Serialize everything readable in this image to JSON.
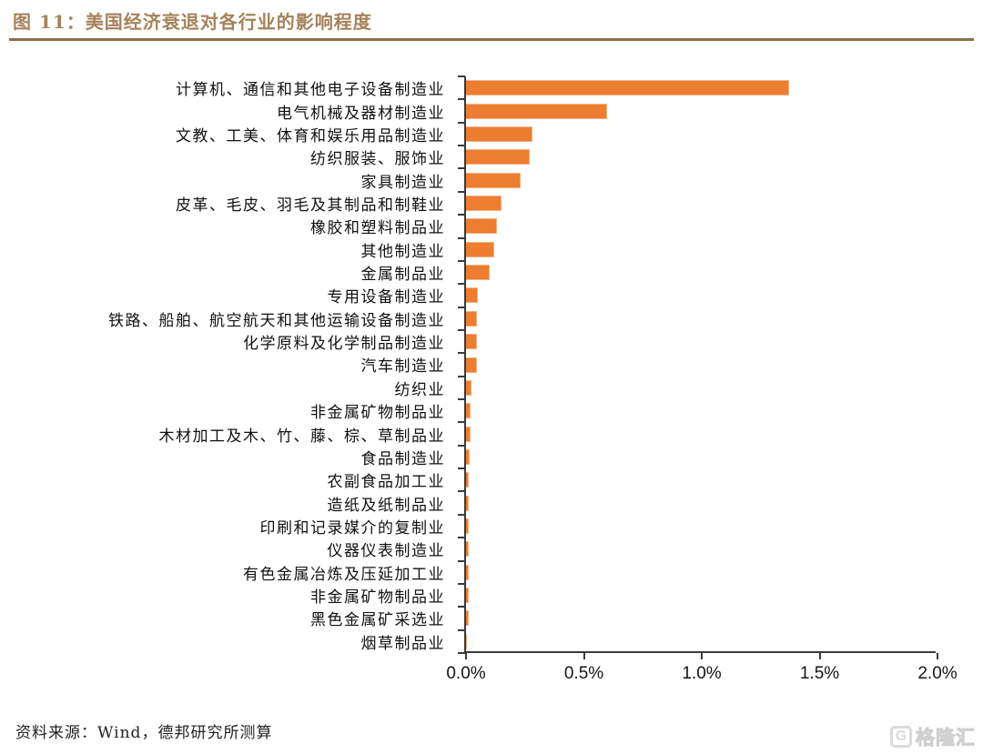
{
  "header": {
    "title": "图 11：美国经济衰退对各行业的影响程度",
    "title_color": "#A6825A",
    "rule_color": "#8C6E4B"
  },
  "chart_data": {
    "type": "bar",
    "orientation": "horizontal",
    "title": "美国经济衰退对各行业的影响程度",
    "xlabel": "",
    "ylabel": "",
    "xlim": [
      0,
      2.0
    ],
    "x_ticks": [
      {
        "value": 0.0,
        "label": "0.0%"
      },
      {
        "value": 0.5,
        "label": "0.5%"
      },
      {
        "value": 1.0,
        "label": "1.0%"
      },
      {
        "value": 1.5,
        "label": "1.5%"
      },
      {
        "value": 2.0,
        "label": "2.0%"
      }
    ],
    "grid": false,
    "legend": null,
    "bar_color": "#ED7D31",
    "bar_border_color": "#F6B183",
    "axis_color": "#3A3A3A",
    "value_unit": "%",
    "categories": [
      "计算机、通信和其他电子设备制造业",
      "电气机械及器材制造业",
      "文教、工美、体育和娱乐用品制造业",
      "纺织服装、服饰业",
      "家具制造业",
      "皮革、毛皮、羽毛及其制品和制鞋业",
      "橡胶和塑料制品业",
      "其他制造业",
      "金属制品业",
      "专用设备制造业",
      "铁路、船舶、航空航天和其他运输设备制造业",
      "化学原料及化学制品制造业",
      "汽车制造业",
      "纺织业",
      "非金属矿物制品业",
      "木材加工及木、竹、藤、棕、草制品业",
      "食品制造业",
      "农副食品加工业",
      "造纸及纸制品业",
      "印刷和记录媒介的复制业",
      "仪器仪表制造业",
      "有色金属冶炼及压延加工业",
      "非金属矿物制品业",
      "黑色金属矿采选业",
      "烟草制品业"
    ],
    "values": [
      1.37,
      0.6,
      0.28,
      0.27,
      0.23,
      0.15,
      0.13,
      0.12,
      0.1,
      0.05,
      0.045,
      0.045,
      0.045,
      0.022,
      0.019,
      0.019,
      0.017,
      0.013,
      0.012,
      0.012,
      0.012,
      0.013,
      0.012,
      0.012,
      0.002
    ]
  },
  "footer": {
    "source": "资料来源：Wind，德邦研究所测算",
    "watermark_icon": "G",
    "watermark_text": "格隆汇"
  }
}
